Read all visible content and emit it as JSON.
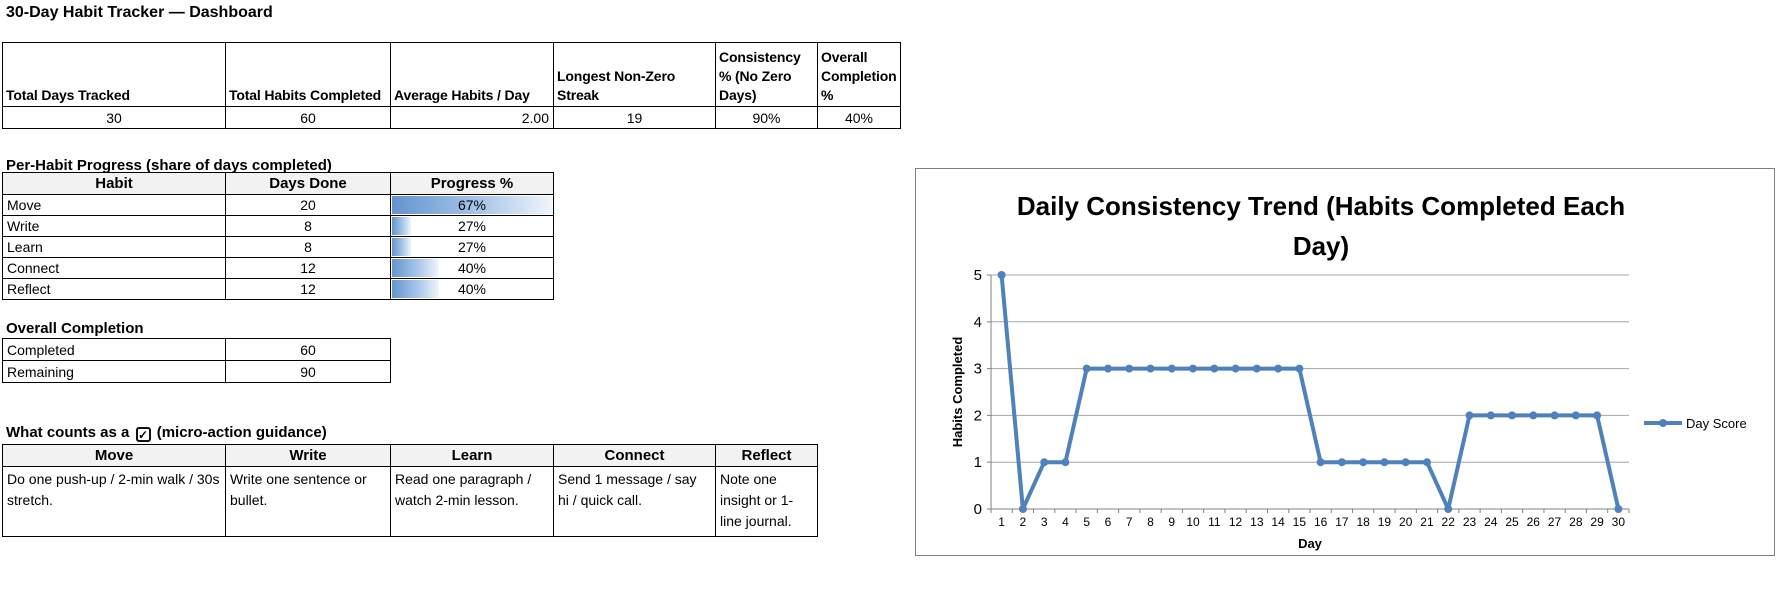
{
  "page_title": "30-Day Habit Tracker — Dashboard",
  "summary_table": {
    "headers": [
      "Total Days Tracked",
      "Total Habits Completed",
      "Average Habits / Day",
      "Longest Non-Zero Streak",
      "Consistency % (No Zero Days)",
      "Overall Completion %"
    ],
    "values": [
      "30",
      "60",
      "2.00",
      "19",
      "90%",
      "40%"
    ]
  },
  "habit_progress": {
    "section_title": "Per-Habit Progress (share of days completed)",
    "headers": [
      "Habit",
      "Days Done",
      "Progress %"
    ],
    "rows": [
      {
        "habit": "Move",
        "days_done": "20",
        "progress": "67%",
        "bar_pct": 100
      },
      {
        "habit": "Write",
        "days_done": "8",
        "progress": "27%",
        "bar_pct": 13
      },
      {
        "habit": "Learn",
        "days_done": "8",
        "progress": "27%",
        "bar_pct": 13
      },
      {
        "habit": "Connect",
        "days_done": "12",
        "progress": "40%",
        "bar_pct": 30
      },
      {
        "habit": "Reflect",
        "days_done": "12",
        "progress": "40%",
        "bar_pct": 30
      }
    ]
  },
  "overall_completion": {
    "section_title": "Overall Completion",
    "rows": [
      {
        "label": "Completed",
        "value": "60"
      },
      {
        "label": "Remaining",
        "value": "90"
      }
    ]
  },
  "micro_actions": {
    "title_prefix": "What counts as a",
    "title_suffix": "(micro-action guidance)",
    "checkbox_icon": "✓",
    "headers": [
      "Move",
      "Write",
      "Learn",
      "Connect",
      "Reflect"
    ],
    "descriptions": [
      "Do one push-up / 2-min walk / 30s stretch.",
      "Write one sentence or bullet.",
      "Read one paragraph / watch 2-min lesson.",
      "Send 1 message / say hi / quick call.",
      "Note one insight or 1-line journal."
    ]
  },
  "chart_data": {
    "type": "line",
    "title": "Daily Consistency Trend (Habits Completed Each Day)",
    "title_lines": [
      "Daily Consistency Trend (Habits Completed Each",
      "Day)"
    ],
    "xlabel": "Day",
    "ylabel": "Habits Completed",
    "x": [
      1,
      2,
      3,
      4,
      5,
      6,
      7,
      8,
      9,
      10,
      11,
      12,
      13,
      14,
      15,
      16,
      17,
      18,
      19,
      20,
      21,
      22,
      23,
      24,
      25,
      26,
      27,
      28,
      29,
      30
    ],
    "series": [
      {
        "name": "Day Score",
        "values": [
          5,
          0,
          1,
          1,
          3,
          3,
          3,
          3,
          3,
          3,
          3,
          3,
          3,
          3,
          3,
          1,
          1,
          1,
          1,
          1,
          1,
          0,
          2,
          2,
          2,
          2,
          2,
          2,
          2,
          0
        ]
      }
    ],
    "ylim": [
      0,
      5
    ],
    "yticks": [
      0,
      1,
      2,
      3,
      4,
      5
    ],
    "grid": true,
    "legend_position": "right",
    "line_color": "#4F81BD",
    "gridline_color": "#A6A6A6",
    "axis_color": "#808080"
  }
}
